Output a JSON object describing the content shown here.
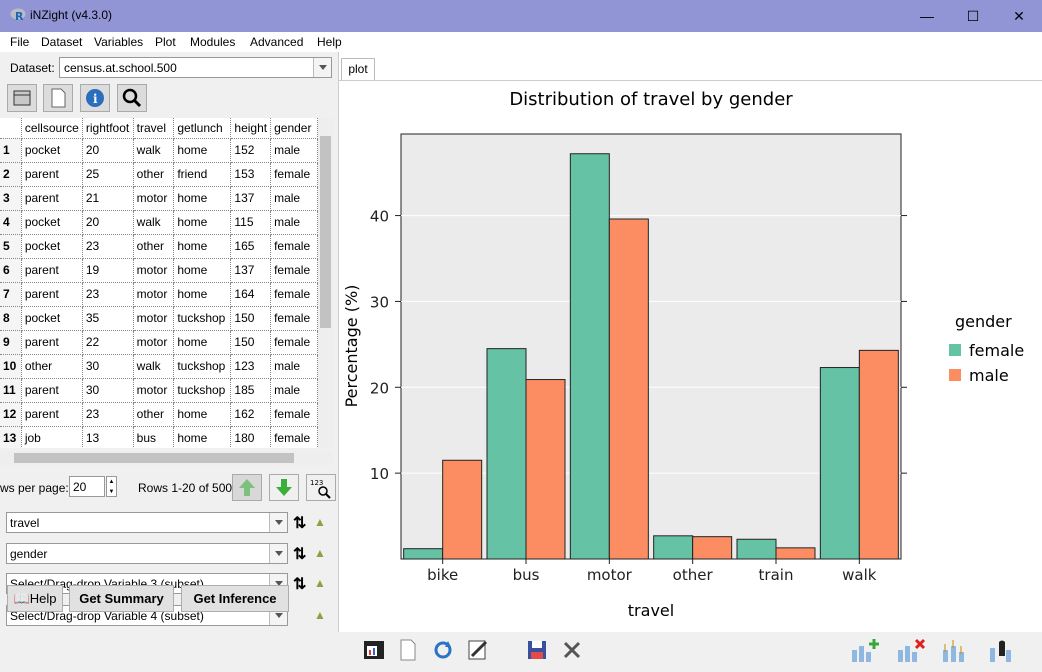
{
  "window": {
    "title": "iNZight (v4.3.0)",
    "icon": "r-logo-icon"
  },
  "menu": [
    "File",
    "Dataset",
    "Variables",
    "Plot",
    "Modules",
    "Advanced",
    "Help"
  ],
  "dataset": {
    "label": "Dataset:",
    "value": "census.at.school.500"
  },
  "table": {
    "columns": [
      "cellsource",
      "rightfoot",
      "travel",
      "getlunch",
      "height",
      "gender"
    ],
    "rows": [
      [
        "1",
        "pocket",
        "20",
        "walk",
        "home",
        "152",
        "male"
      ],
      [
        "2",
        "parent",
        "25",
        "other",
        "friend",
        "153",
        "female"
      ],
      [
        "3",
        "parent",
        "21",
        "motor",
        "home",
        "137",
        "male"
      ],
      [
        "4",
        "pocket",
        "20",
        "walk",
        "home",
        "115",
        "male"
      ],
      [
        "5",
        "pocket",
        "23",
        "other",
        "home",
        "165",
        "female"
      ],
      [
        "6",
        "parent",
        "19",
        "motor",
        "home",
        "137",
        "female"
      ],
      [
        "7",
        "parent",
        "23",
        "motor",
        "home",
        "164",
        "female"
      ],
      [
        "8",
        "pocket",
        "35",
        "motor",
        "tuckshop",
        "150",
        "female"
      ],
      [
        "9",
        "parent",
        "22",
        "motor",
        "home",
        "150",
        "female"
      ],
      [
        "10",
        "other",
        "30",
        "walk",
        "tuckshop",
        "123",
        "male"
      ],
      [
        "11",
        "parent",
        "30",
        "motor",
        "tuckshop",
        "185",
        "male"
      ],
      [
        "12",
        "parent",
        "23",
        "other",
        "home",
        "162",
        "female"
      ],
      [
        "13",
        "job",
        "13",
        "bus",
        "home",
        "180",
        "female"
      ]
    ]
  },
  "pager": {
    "rows_label": "ws per page:",
    "rows_value": "20",
    "info": "Rows 1-20 of 500"
  },
  "variables": {
    "var1": "travel",
    "var2": "gender",
    "var3": "Select/Drag-drop Variable 3 (subset)",
    "var4": "Select/Drag-drop Variable 4 (subset)"
  },
  "buttons": {
    "help": "Help",
    "summary": "Get Summary",
    "inference": "Get Inference"
  },
  "tab": "plot",
  "colors": {
    "female": "#66c2a5",
    "male": "#fc8d62",
    "titlebar": "#9195d6"
  },
  "chart_data": {
    "type": "bar",
    "title": "Distribution of travel by gender",
    "xlabel": "travel",
    "ylabel": "Percentage (%)",
    "categories": [
      "bike",
      "bus",
      "motor",
      "other",
      "train",
      "walk"
    ],
    "series": [
      {
        "name": "female",
        "values": [
          1.2,
          24.5,
          47.2,
          2.7,
          2.3,
          22.3
        ]
      },
      {
        "name": "male",
        "values": [
          11.5,
          20.9,
          39.6,
          2.6,
          1.3,
          24.3
        ]
      }
    ],
    "yticks": [
      10,
      20,
      30,
      40
    ],
    "ylim": [
      0,
      49.5
    ],
    "legend": {
      "title": "gender",
      "position": "right"
    },
    "grid": true
  }
}
